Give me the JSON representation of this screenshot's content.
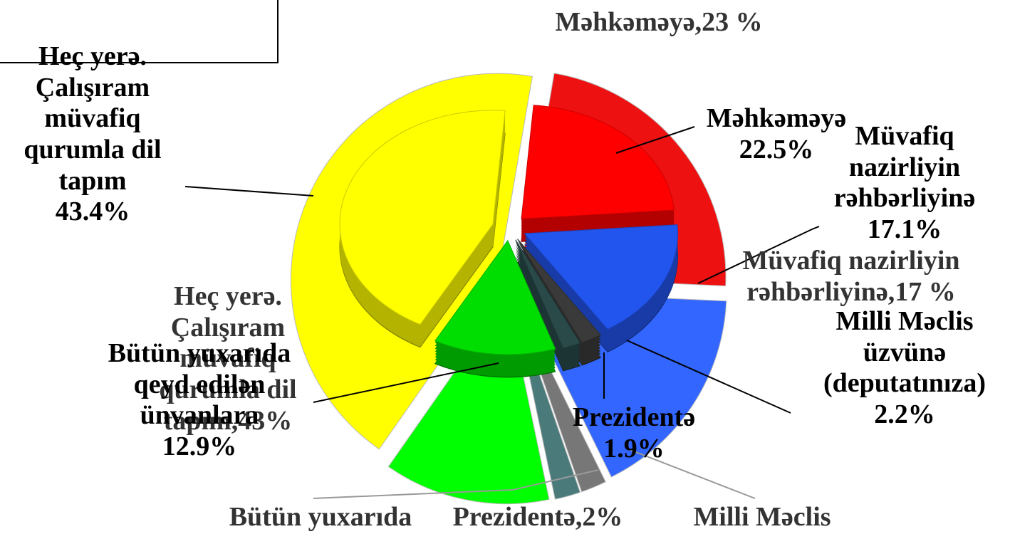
{
  "chart_data": [
    {
      "type": "pie",
      "labels": [
        "Məhkəməyə,23 %",
        "Müvafiq nazirliyin rəhbərliyinə,17 %",
        "Milli Məclis",
        "Prezidentə,2%",
        "Bütün yuxarıda",
        "Heç yerə. Çalışıram müvafiq qurumla dil tapım,43%"
      ],
      "values": [
        23,
        17,
        2,
        2,
        13,
        43
      ],
      "colors": [
        "#ee1111",
        "#3366ff",
        "#777777",
        "#4a7a7a",
        "#00ff00",
        "#ffff00"
      ]
    },
    {
      "type": "pie3d",
      "categories": [
        "Məhkəməyə",
        "Müvafiq nazirliyin rəhbərliyinə",
        "Milli Məclis üzvünə (deputatınıza)",
        "Prezidentə",
        "Bütün yuxarıda qeyd edilən ünvanlara",
        "Heç yerə. Çalışıram müvafiq qurumla dil tapım"
      ],
      "values": [
        22.5,
        17.1,
        2.2,
        1.9,
        12.9,
        43.4
      ],
      "value_labels": [
        "22.5%",
        "17.1%",
        "2.2%",
        "1.9%",
        "12.9%",
        "43.4%"
      ],
      "colors": [
        "#ff0000",
        "#2255ee",
        "#3a3a3a",
        "#2a4a4a",
        "#00dd00",
        "#ffff00"
      ]
    }
  ]
}
